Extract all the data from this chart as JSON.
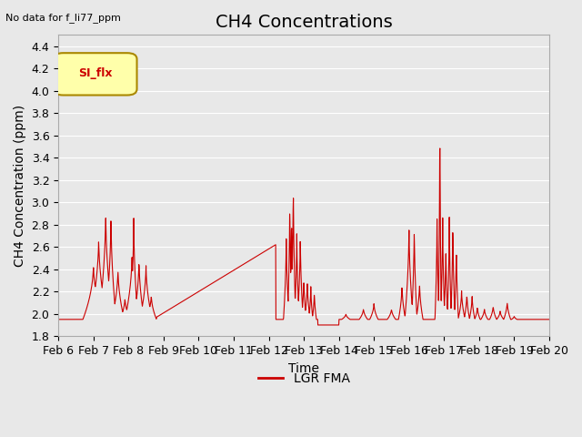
{
  "title": "CH4 Concentrations",
  "subtitle": "No data for f_li77_ppm",
  "xlabel": "Time",
  "ylabel": "CH4 Concentration (ppm)",
  "ylim": [
    1.8,
    4.5
  ],
  "yticks": [
    1.8,
    2.0,
    2.2,
    2.4,
    2.6,
    2.8,
    3.0,
    3.2,
    3.4,
    3.6,
    3.8,
    4.0,
    4.2,
    4.4
  ],
  "line_color": "#cc0000",
  "line_label": "LGR FMA",
  "legend_label": "SI_flx",
  "legend_box_color": "#ffffaa",
  "legend_box_border": "#aa8800",
  "background_color": "#e8e8e8",
  "plot_bg_color": "#e8e8e8",
  "title_fontsize": 14,
  "label_fontsize": 10,
  "tick_fontsize": 9,
  "x_tick_labels": [
    "Feb 6",
    "Feb 7",
    "Feb 8",
    "Feb 9",
    "Feb 10",
    "Feb 11",
    "Feb 12",
    "Feb 13",
    "Feb 14",
    "Feb 15",
    "Feb 16",
    "Feb 17",
    "Feb 18",
    "Feb 19",
    "Feb 20"
  ]
}
